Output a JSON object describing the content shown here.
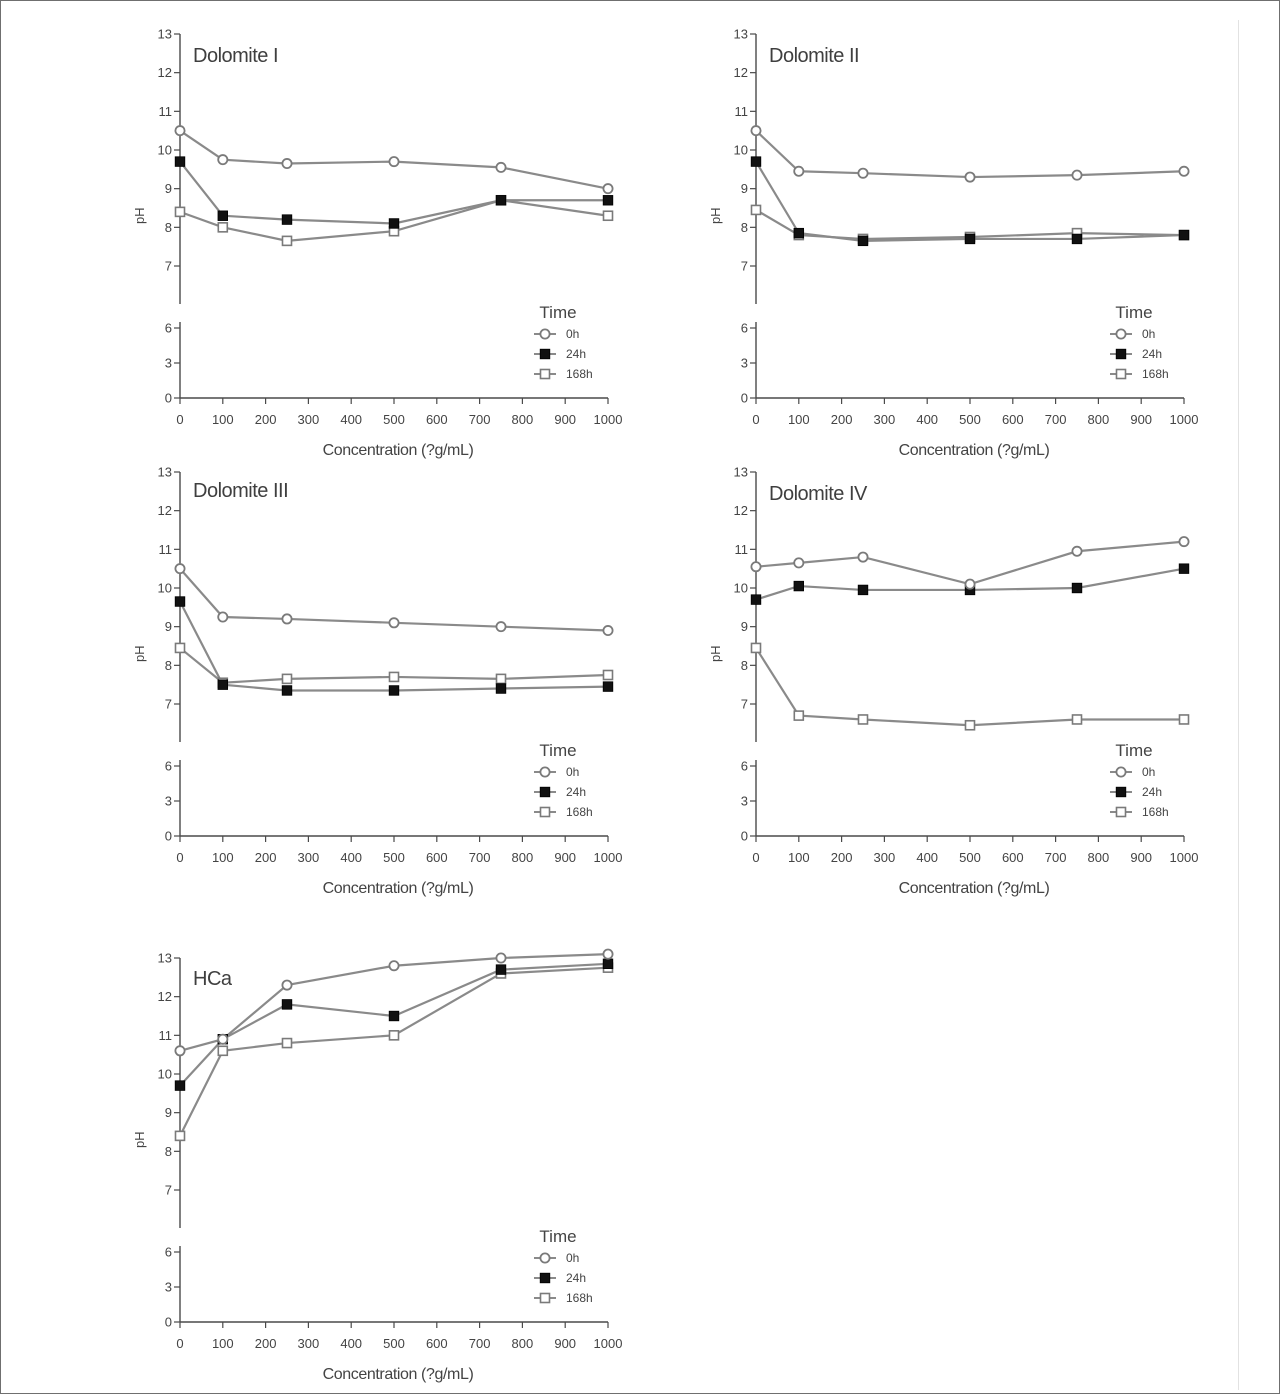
{
  "chart_data": [
    {
      "type": "line",
      "title": "Dolomite I",
      "xlabel": "Concentration (?g/mL)",
      "ylabel": "pH",
      "x": [
        0,
        100,
        250,
        500,
        750,
        1000
      ],
      "series": [
        {
          "name": "0h",
          "marker": "open-circle",
          "values": [
            10.5,
            9.75,
            9.65,
            9.7,
            9.55,
            9.0
          ]
        },
        {
          "name": "24h",
          "marker": "filled-square",
          "values": [
            9.7,
            8.3,
            8.2,
            8.1,
            8.7,
            8.7
          ]
        },
        {
          "name": "168h",
          "marker": "open-square",
          "values": [
            8.4,
            8.0,
            7.65,
            7.9,
            8.7,
            8.3
          ]
        }
      ],
      "legend_title": "Time",
      "legend_position": "bottom-right",
      "x_ticks": [
        0,
        100,
        200,
        300,
        400,
        500,
        600,
        700,
        800,
        900,
        1000
      ],
      "y_ticks_upper": [
        7,
        8,
        9,
        10,
        11,
        12,
        13
      ],
      "y_ticks_lower": [
        0,
        3,
        6
      ],
      "y_break": true
    },
    {
      "type": "line",
      "title": "Dolomite II",
      "xlabel": "Concentration (?g/mL)",
      "ylabel": "pH",
      "x": [
        0,
        100,
        250,
        500,
        750,
        1000
      ],
      "series": [
        {
          "name": "0h",
          "marker": "open-circle",
          "values": [
            10.5,
            9.45,
            9.4,
            9.3,
            9.35,
            9.45
          ]
        },
        {
          "name": "24h",
          "marker": "filled-square",
          "values": [
            9.7,
            7.85,
            7.65,
            7.7,
            7.7,
            7.8
          ]
        },
        {
          "name": "168h",
          "marker": "open-square",
          "values": [
            8.45,
            7.8,
            7.7,
            7.75,
            7.85,
            7.8
          ]
        }
      ],
      "legend_title": "Time",
      "legend_position": "bottom-right",
      "x_ticks": [
        0,
        100,
        200,
        300,
        400,
        500,
        600,
        700,
        800,
        900,
        1000
      ],
      "y_ticks_upper": [
        7,
        8,
        9,
        10,
        11,
        12,
        13
      ],
      "y_ticks_lower": [
        0,
        3,
        6
      ],
      "y_break": true
    },
    {
      "type": "line",
      "title": "Dolomite III",
      "xlabel": "Concentration (?g/mL)",
      "ylabel": "pH",
      "x": [
        0,
        100,
        250,
        500,
        750,
        1000
      ],
      "series": [
        {
          "name": "0h",
          "marker": "open-circle",
          "values": [
            10.5,
            9.25,
            9.2,
            9.1,
            9.0,
            8.9
          ]
        },
        {
          "name": "24h",
          "marker": "filled-square",
          "values": [
            9.65,
            7.5,
            7.35,
            7.35,
            7.4,
            7.45
          ]
        },
        {
          "name": "168h",
          "marker": "open-square",
          "values": [
            8.45,
            7.55,
            7.65,
            7.7,
            7.65,
            7.75
          ]
        }
      ],
      "legend_title": "Time",
      "legend_position": "bottom-right",
      "x_ticks": [
        0,
        100,
        200,
        300,
        400,
        500,
        600,
        700,
        800,
        900,
        1000
      ],
      "y_ticks_upper": [
        7,
        8,
        9,
        10,
        11,
        12,
        13
      ],
      "y_ticks_lower": [
        0,
        3,
        6
      ],
      "y_break": true
    },
    {
      "type": "line",
      "title": "Dolomite IV",
      "xlabel": "Concentration (?g/mL)",
      "ylabel": "pH",
      "x": [
        0,
        100,
        250,
        500,
        750,
        1000
      ],
      "series": [
        {
          "name": "0h",
          "marker": "open-circle",
          "values": [
            10.55,
            10.65,
            10.8,
            10.1,
            10.95,
            11.2
          ]
        },
        {
          "name": "24h",
          "marker": "filled-square",
          "values": [
            9.7,
            10.05,
            9.95,
            9.95,
            10.0,
            10.5
          ]
        },
        {
          "name": "168h",
          "marker": "open-square",
          "values": [
            8.45,
            6.7,
            6.6,
            6.45,
            6.6,
            6.6
          ]
        }
      ],
      "legend_title": "Time",
      "legend_position": "bottom-right",
      "x_ticks": [
        0,
        100,
        200,
        300,
        400,
        500,
        600,
        700,
        800,
        900,
        1000
      ],
      "y_ticks_upper": [
        7,
        8,
        9,
        10,
        11,
        12,
        13
      ],
      "y_ticks_lower": [
        0,
        3,
        6
      ],
      "y_break": true
    },
    {
      "type": "line",
      "title": "HCa",
      "xlabel": "Concentration (?g/mL)",
      "ylabel": "pH",
      "x": [
        0,
        100,
        250,
        500,
        750,
        1000
      ],
      "series": [
        {
          "name": "0h",
          "marker": "open-circle",
          "values": [
            10.6,
            10.9,
            12.3,
            12.8,
            13.0,
            13.1
          ]
        },
        {
          "name": "24h",
          "marker": "filled-square",
          "values": [
            9.7,
            10.9,
            11.8,
            11.5,
            12.7,
            12.85
          ]
        },
        {
          "name": "168h",
          "marker": "open-square",
          "values": [
            8.4,
            10.6,
            10.8,
            11.0,
            12.6,
            12.75
          ]
        }
      ],
      "legend_title": "Time",
      "legend_position": "bottom-right",
      "x_ticks": [
        0,
        100,
        200,
        300,
        400,
        500,
        600,
        700,
        800,
        900,
        1000
      ],
      "y_ticks_upper": [
        7,
        8,
        9,
        10,
        11,
        12,
        13
      ],
      "y_ticks_lower": [
        0,
        3,
        6
      ],
      "y_break": true
    }
  ],
  "colors": {
    "line": "#8a8a8a",
    "axis": "#4a4a4a",
    "filled_marker": "#111111",
    "open_marker_stroke": "#7a7a7a"
  }
}
